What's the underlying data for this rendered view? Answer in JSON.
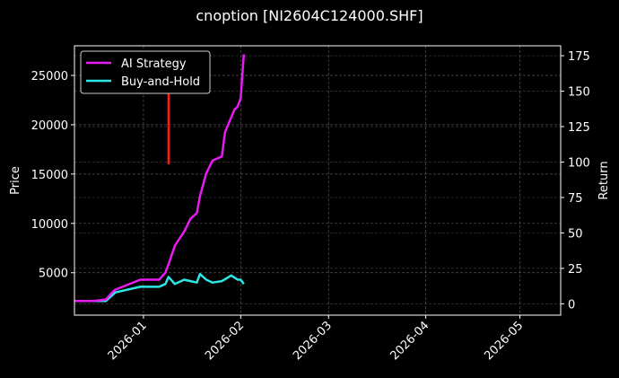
{
  "chart_data": {
    "type": "line",
    "title": "cnoption [NI2604C124000.SHF]",
    "xlabel": "",
    "ylabel": "Price",
    "ylabel_right": "Return",
    "x_tick_labels": [
      "2026-01",
      "2026-02",
      "2026-03",
      "2026-04",
      "2026-05"
    ],
    "y_tick_labels_left": [
      "5000",
      "10000",
      "15000",
      "20000",
      "25000"
    ],
    "y_tick_labels_right": [
      "0",
      "25",
      "50",
      "75",
      "100",
      "125",
      "150",
      "175"
    ],
    "ylim_left": [
      700,
      28000
    ],
    "ylim_right": [
      -8,
      182
    ],
    "xlim": [
      "2025-12-10",
      "2026-05-14"
    ],
    "grid": true,
    "legend_position": "upper left",
    "background": "#000000",
    "series": [
      {
        "name": "AI Strategy",
        "axis": "right",
        "color": "#e81cf0",
        "x": [
          "2025-12-10",
          "2025-12-16",
          "2025-12-20",
          "2025-12-22",
          "2025-12-23",
          "2025-12-31",
          "2026-01-06",
          "2026-01-08",
          "2026-01-09",
          "2026-01-11",
          "2026-01-14",
          "2026-01-16",
          "2026-01-18",
          "2026-01-19",
          "2026-01-21",
          "2026-01-23",
          "2026-01-26",
          "2026-01-27",
          "2026-01-30",
          "2026-01-31",
          "2026-02-01",
          "2026-02-02"
        ],
        "values": [
          2,
          2,
          3,
          8,
          10,
          17,
          17,
          22,
          28,
          41,
          51,
          60,
          64,
          76,
          92,
          101,
          104,
          121,
          137,
          139,
          145,
          176
        ]
      },
      {
        "name": "Buy-and-Hold",
        "axis": "right",
        "color": "#2ee6e6",
        "x": [
          "2025-12-10",
          "2025-12-20",
          "2025-12-22",
          "2025-12-23",
          "2025-12-31",
          "2026-01-06",
          "2026-01-08",
          "2026-01-09",
          "2026-01-11",
          "2026-01-14",
          "2026-01-16",
          "2026-01-18",
          "2026-01-19",
          "2026-01-21",
          "2026-01-23",
          "2026-01-26",
          "2026-01-29",
          "2026-01-31",
          "2026-02-01",
          "2026-02-02"
        ],
        "values": [
          2,
          2,
          6,
          8,
          12,
          12,
          14,
          19,
          14,
          17,
          16,
          15,
          21,
          17,
          15,
          16,
          20,
          17,
          17,
          14
        ]
      },
      {
        "name": "Option price (bars)",
        "axis": "left",
        "color": "#ff1a1a",
        "x": [
          "2026-01-09"
        ],
        "low": [
          16000
        ],
        "high": [
          23500
        ]
      }
    ]
  }
}
